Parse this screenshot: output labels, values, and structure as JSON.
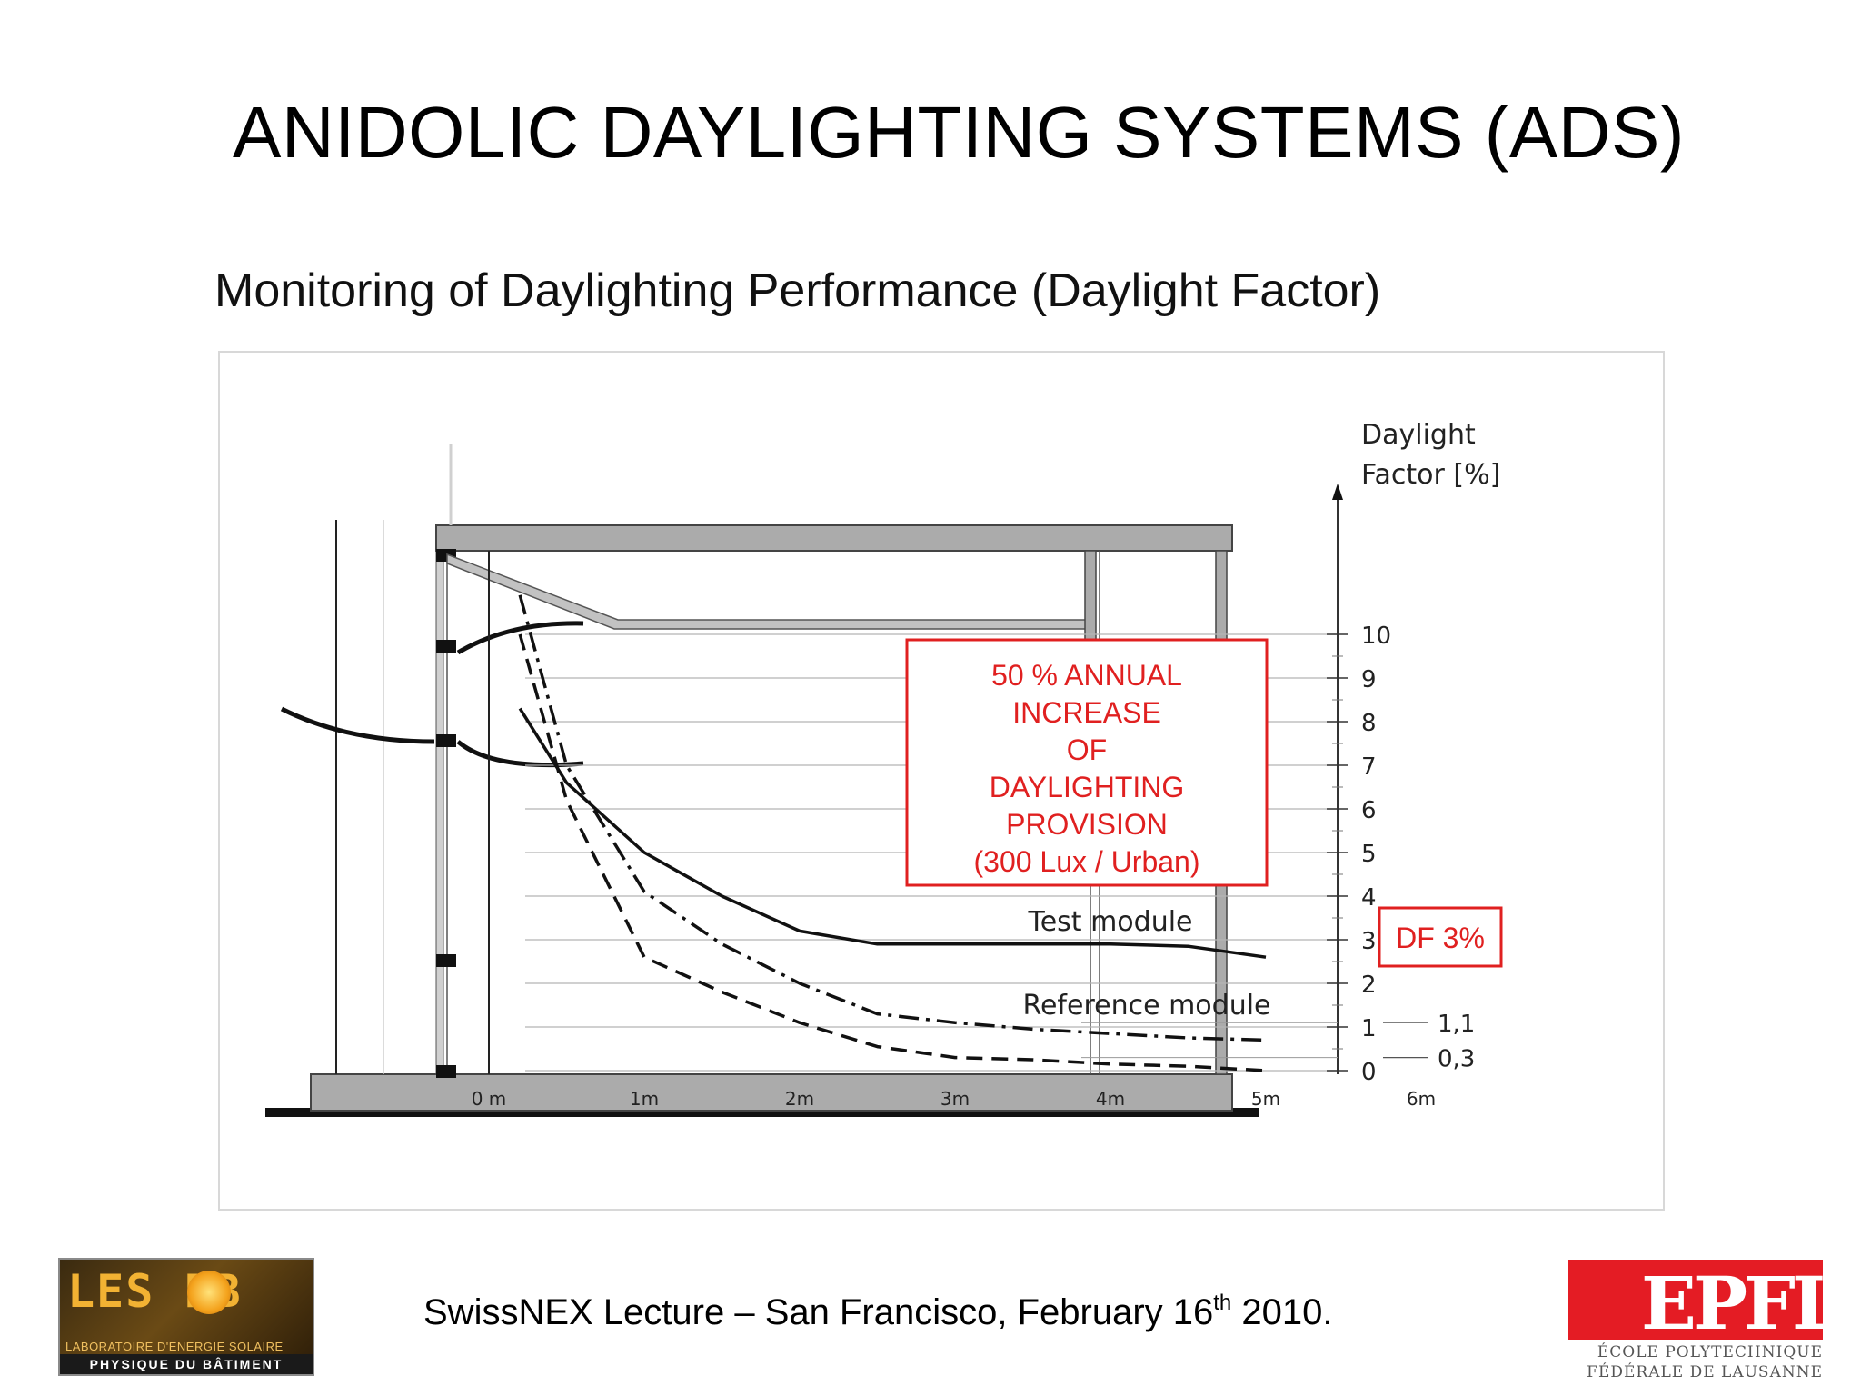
{
  "slide": {
    "title": "ANIDOLIC DAYLIGHTING SYSTEMS (ADS)",
    "subtitle": "Monitoring of Daylighting Performance (Daylight Factor)",
    "footer_main": "SwissNEX Lecture – San Francisco, February 16",
    "footer_sup": "th",
    "footer_end": " 2010."
  },
  "logos": {
    "leso_word": "LES PB",
    "leso_line1": "LABORATOIRE D'ENERGIE SOLAIRE",
    "leso_line2": "PHYSIQUE DU BÂTIMENT",
    "epfl_word": "EPFL",
    "epfl_line1": "ÉCOLE POLYTECHNIQUE",
    "epfl_line2": "FÉDÉRALE DE LAUSANNE"
  },
  "chart_data": {
    "type": "line",
    "ylabel_line1": "Daylight",
    "ylabel_line2": "Factor [%]",
    "x_ticks": [
      "0 m",
      "1m",
      "2m",
      "3m",
      "4m",
      "5m",
      "6m"
    ],
    "y_ticks": [
      "0",
      "1",
      "2",
      "3",
      "4",
      "5",
      "6",
      "7",
      "8",
      "9",
      "10"
    ],
    "xlim": [
      0,
      6
    ],
    "ylim": [
      0,
      10
    ],
    "series": [
      {
        "name": "Test module",
        "style": "solid",
        "x": [
          0.2,
          0.5,
          1.0,
          1.5,
          2.0,
          2.5,
          3.0,
          3.5,
          4.0,
          4.5,
          5.0
        ],
        "y": [
          8.3,
          6.6,
          5.0,
          4.0,
          3.2,
          2.9,
          2.9,
          2.9,
          2.9,
          2.85,
          2.6
        ]
      },
      {
        "name": "",
        "style": "dash-dot",
        "x": [
          0.2,
          0.5,
          1.0,
          1.5,
          2.0,
          2.5,
          3.0,
          3.5,
          4.0,
          4.5,
          5.0
        ],
        "y": [
          10.9,
          7.0,
          4.1,
          2.9,
          2.0,
          1.3,
          1.1,
          0.95,
          0.85,
          0.75,
          0.7
        ]
      },
      {
        "name": "Reference module",
        "style": "dashed",
        "x": [
          0.2,
          0.5,
          1.0,
          1.5,
          2.0,
          2.5,
          3.0,
          3.5,
          4.0,
          4.5,
          5.0
        ],
        "y": [
          10.0,
          6.2,
          2.6,
          1.8,
          1.1,
          0.55,
          0.3,
          0.25,
          0.15,
          0.1,
          0.0
        ]
      }
    ],
    "side_values": [
      "1,1",
      "0,3"
    ],
    "annotation_box": [
      "50 % ANNUAL",
      "INCREASE",
      "OF",
      "DAYLIGHTING",
      "PROVISION",
      "(300 Lux / Urban)"
    ],
    "df_box": "DF 3%",
    "colors": {
      "annotation": "#e02020",
      "curve": "#111111",
      "structure": "#a8a8a8"
    }
  }
}
